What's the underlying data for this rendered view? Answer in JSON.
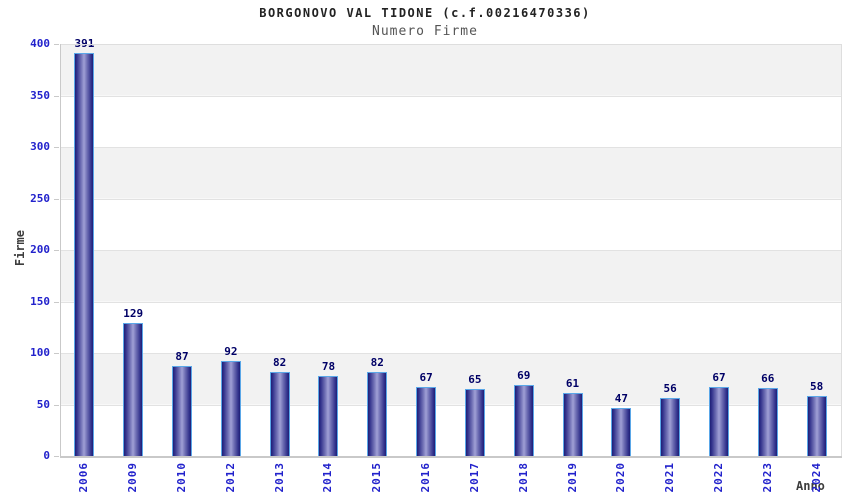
{
  "chart_data": {
    "type": "bar",
    "title": "BORGONOVO VAL TIDONE (c.f.00216470336)",
    "subtitle": "Numero Firme",
    "xlabel": "Anno",
    "ylabel": "Firme",
    "categories": [
      "2006",
      "2009",
      "2010",
      "2012",
      "2013",
      "2014",
      "2015",
      "2016",
      "2017",
      "2018",
      "2019",
      "2020",
      "2021",
      "2022",
      "2023",
      "2024"
    ],
    "values": [
      391,
      129,
      87,
      92,
      82,
      78,
      82,
      67,
      65,
      69,
      61,
      47,
      56,
      67,
      66,
      58
    ],
    "ylim": [
      0,
      400
    ],
    "ytick_step": 50,
    "yticks": [
      0,
      50,
      100,
      150,
      200,
      250,
      300,
      350,
      400
    ],
    "grid": "alternating horizontal bands every 50 units",
    "legend": "none",
    "value_labels": "above each bar",
    "colors": {
      "bar_dark": "#1f1f76",
      "bar_mid": "#32328c",
      "bar_light": "#9d9dd4",
      "bar_border": "#5aa7e8",
      "tick_label": "#2222cc",
      "value_label": "#000066",
      "axis_title": "#3d3d3d",
      "title_text": "#222222",
      "subtitle_text": "#555555",
      "band_gray": "#f2f2f2",
      "band_white": "#ffffff",
      "gridline": "#e2e2e2"
    }
  }
}
